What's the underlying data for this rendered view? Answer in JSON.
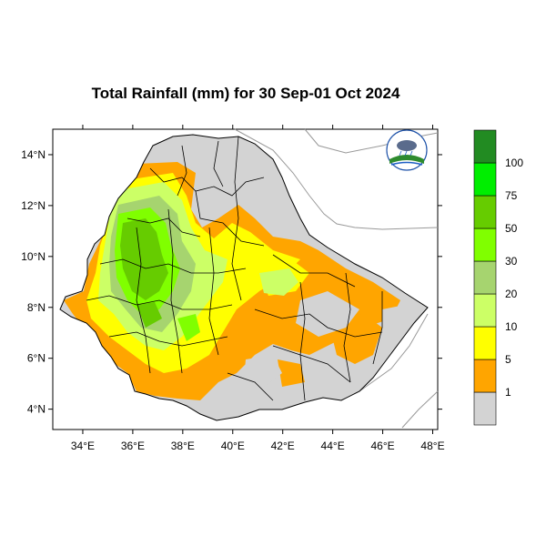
{
  "title": "Total Rainfall (mm) for 30 Sep-01 Oct 2024",
  "x_axis": {
    "ticks": [
      "34°E",
      "36°E",
      "38°E",
      "40°E",
      "42°E",
      "44°E",
      "46°E",
      "48°E"
    ],
    "values": [
      34,
      36,
      38,
      40,
      42,
      44,
      46,
      48
    ],
    "range": [
      32.8,
      48.2
    ]
  },
  "y_axis": {
    "ticks": [
      "4°N",
      "6°N",
      "8°N",
      "10°N",
      "12°N",
      "14°N"
    ],
    "values": [
      4,
      6,
      8,
      10,
      12,
      14
    ],
    "range": [
      3.2,
      15.0
    ]
  },
  "colorbar": {
    "labels": [
      "1",
      "5",
      "10",
      "20",
      "30",
      "50",
      "75",
      "100"
    ],
    "colors": [
      "#d3d3d3",
      "#ffa500",
      "#ffff00",
      "#ccff66",
      "#a6d46f",
      "#80ff00",
      "#66cc00",
      "#00ee00",
      "#228b22"
    ]
  },
  "colors": {
    "nodata": "#d3d3d3",
    "border": "#000000",
    "coast": "#999999"
  },
  "logo_icon": "ethiopian-meteorology-institute-logo"
}
